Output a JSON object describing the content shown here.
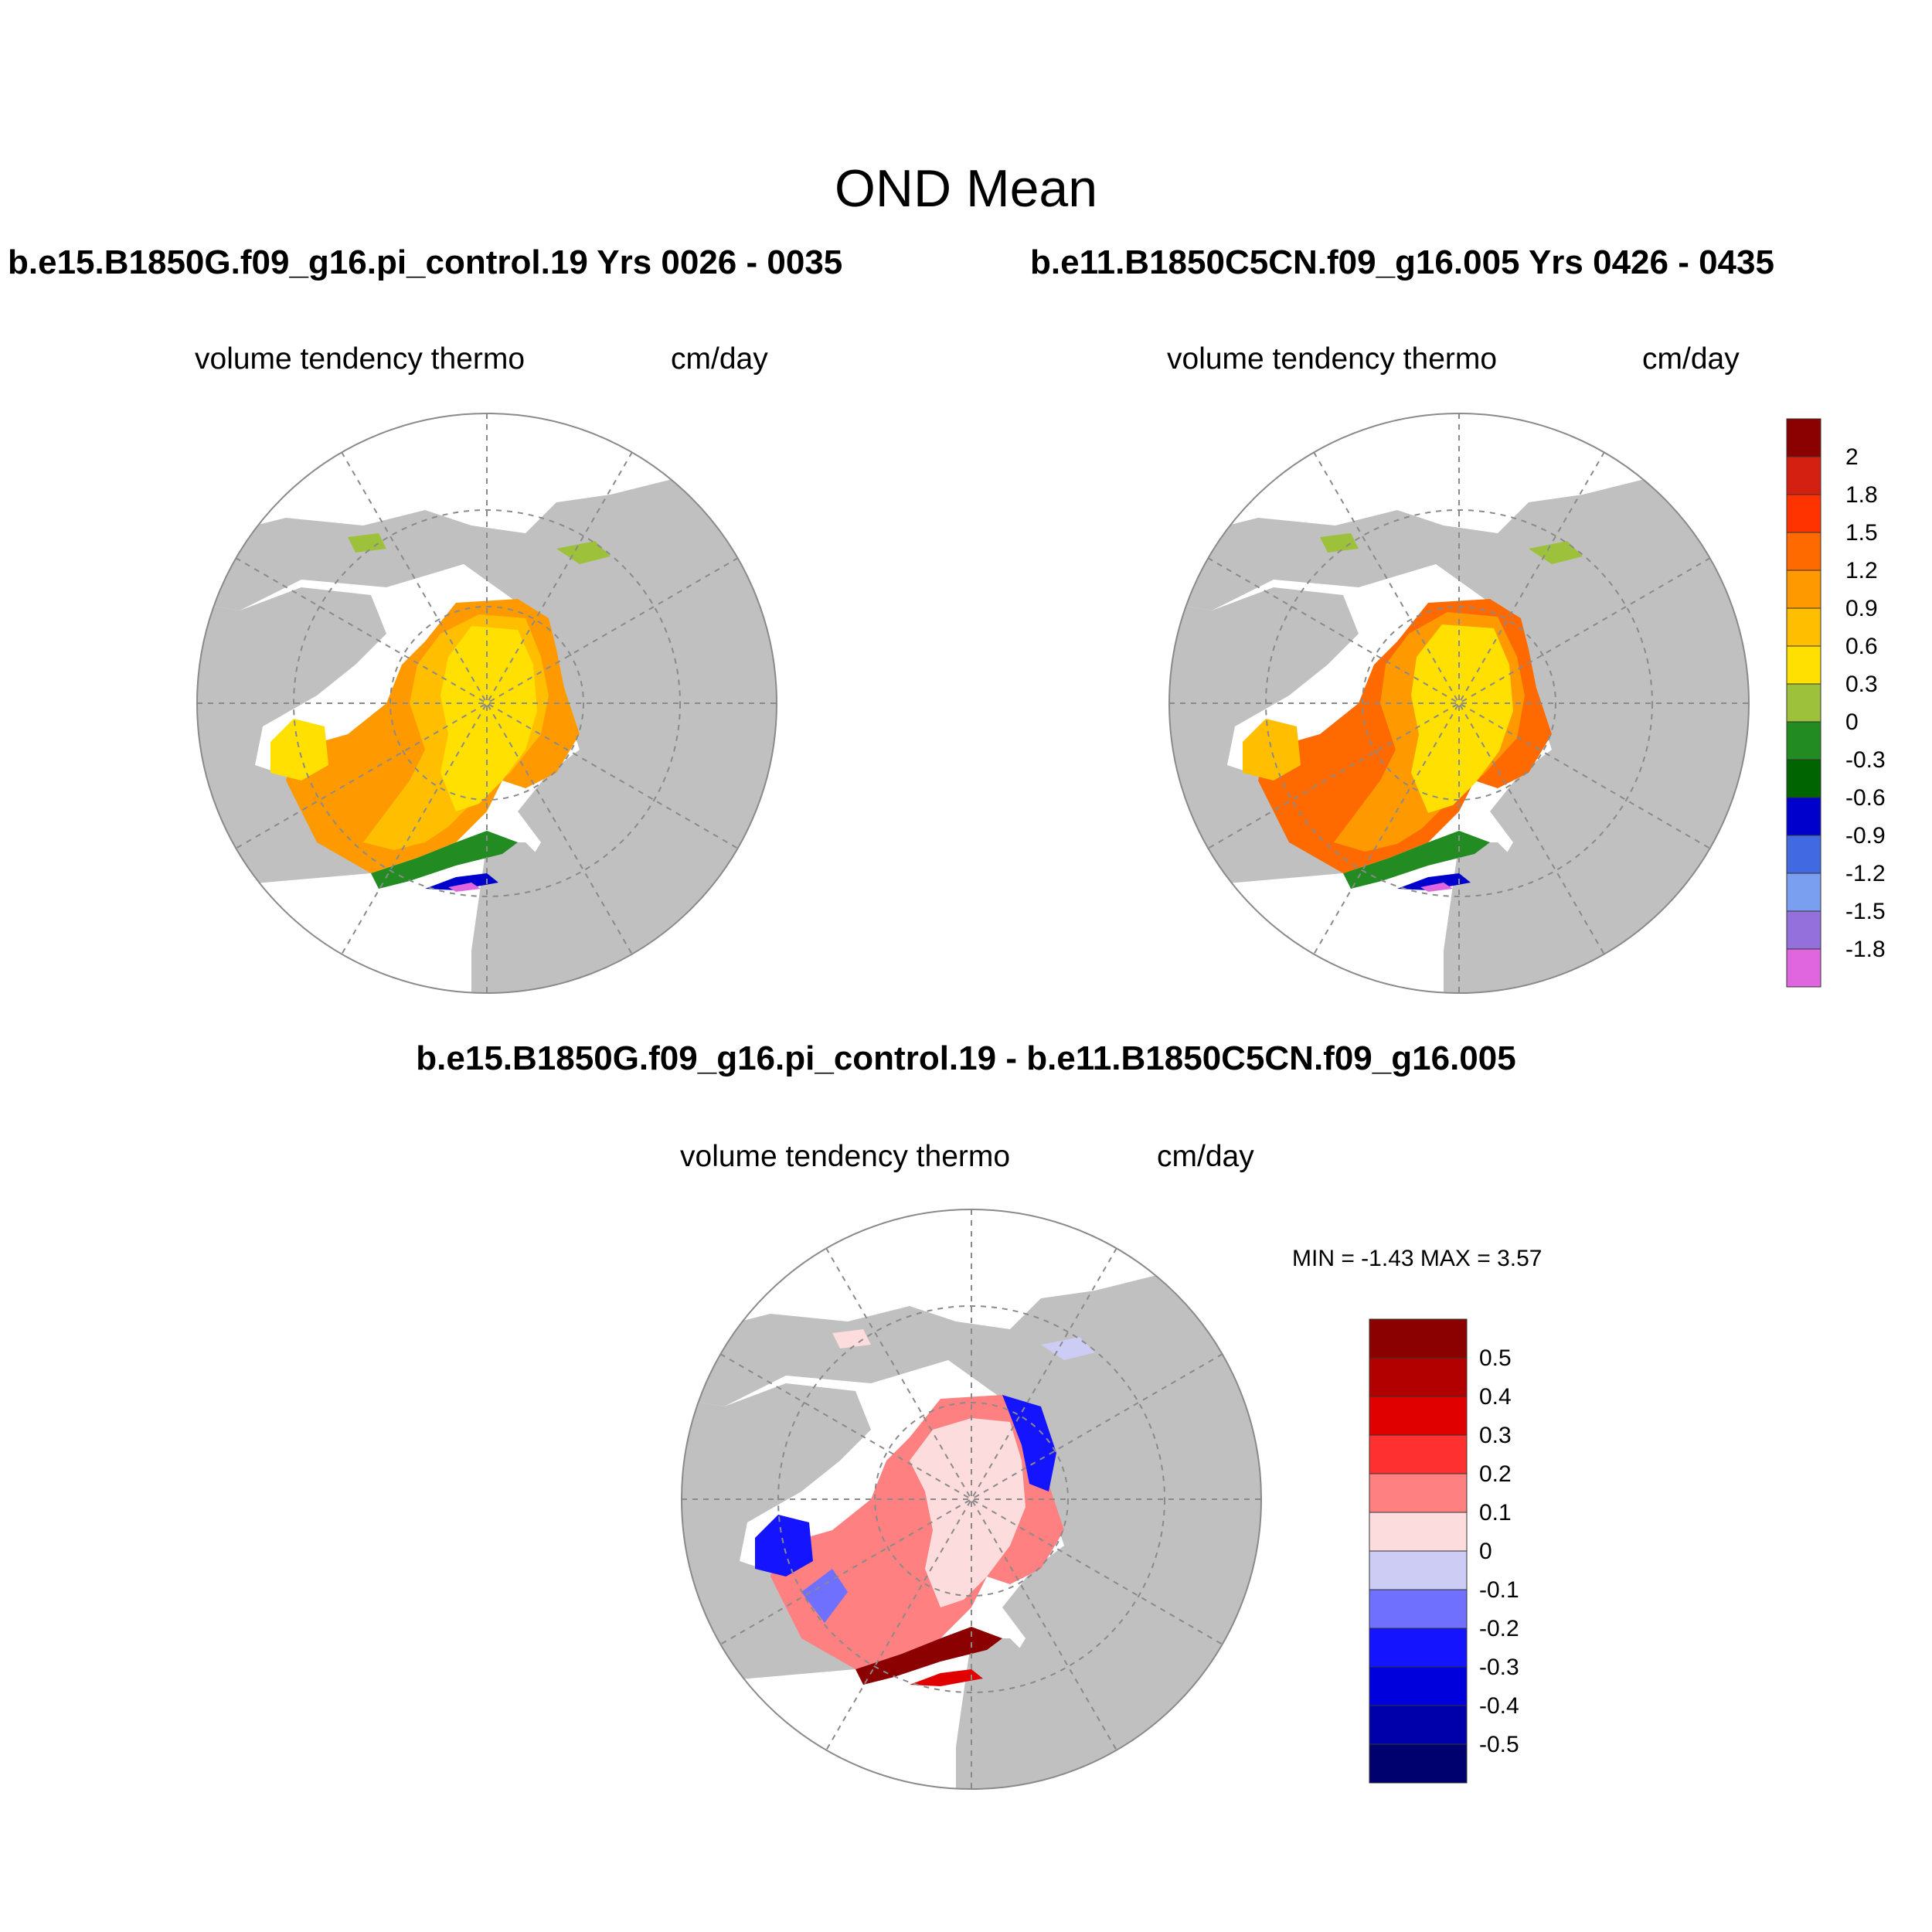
{
  "figure": {
    "title": "OND Mean"
  },
  "panels": {
    "left": {
      "case": "b.e15.B1850G.f09_g16.pi_control.19  Yrs 0026 - 0035",
      "variable": "volume tendency thermo",
      "units": "cm/day"
    },
    "right": {
      "case": "b.e11.B1850C5CN.f09_g16.005  Yrs 0426 - 0435",
      "variable": "volume tendency thermo",
      "units": "cm/day"
    },
    "diff": {
      "case": "b.e15.B1850G.f09_g16.pi_control.19 - b.e11.B1850C5CN.f09_g16.005",
      "variable": "volume tendency thermo",
      "units": "cm/day",
      "stats": "MIN =  -1.43 MAX =   3.57"
    }
  },
  "colorbars": {
    "abs": {
      "labels": [
        "2",
        "1.8",
        "1.5",
        "1.2",
        "0.9",
        "0.6",
        "0.3",
        "0",
        "-0.3",
        "-0.6",
        "-0.9",
        "-1.2",
        "-1.5",
        "-1.8"
      ],
      "colors": [
        "#8b0000",
        "#d42010",
        "#ff3300",
        "#ff6a00",
        "#ff9900",
        "#ffbf00",
        "#ffe000",
        "#9dc13b",
        "#228b22",
        "#006400",
        "#0000cd",
        "#4169e1",
        "#7b9ff0",
        "#9370db",
        "#e066e0"
      ]
    },
    "diff": {
      "labels": [
        "0.5",
        "0.4",
        "0.3",
        "0.2",
        "0.1",
        "0",
        "-0.1",
        "-0.2",
        "-0.3",
        "-0.4",
        "-0.5"
      ],
      "colors": [
        "#8b0000",
        "#b20000",
        "#e00000",
        "#ff3030",
        "#ff8080",
        "#fcdcdc",
        "#ccccf5",
        "#7070ff",
        "#1414ff",
        "#0000dc",
        "#0000aa",
        "#00006e"
      ]
    }
  },
  "colors": {
    "land": "#c0c0c0",
    "grid": "#8a8a8a"
  }
}
